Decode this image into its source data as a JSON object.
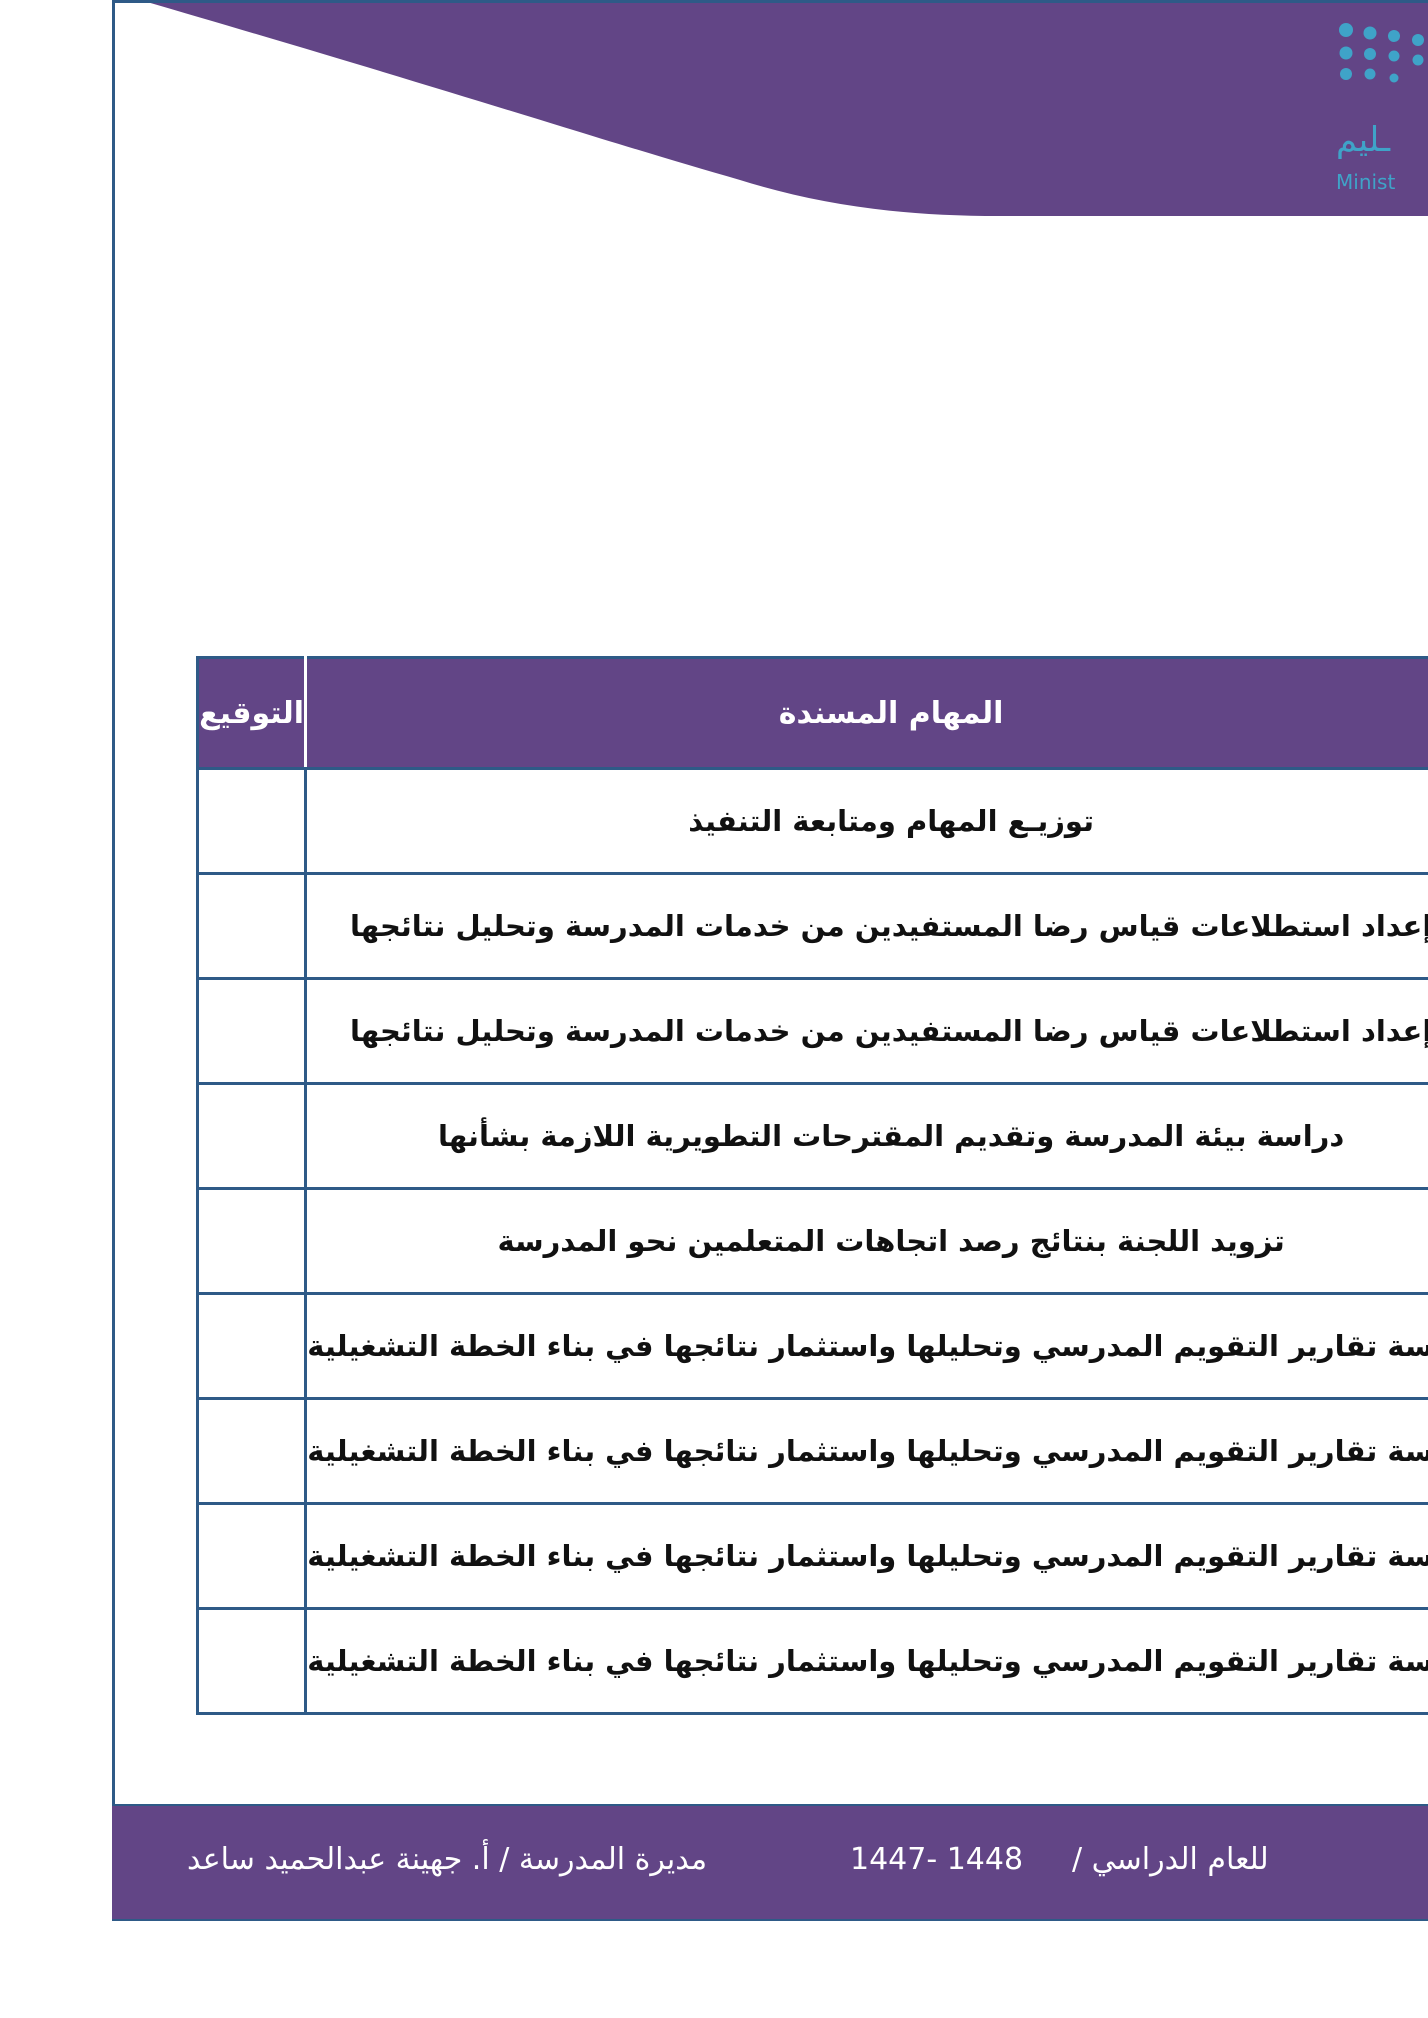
{
  "header": {
    "logo_text_ar": "ـليم",
    "logo_text_en": "Minist",
    "colors": {
      "brand": "#624586",
      "logo": "#3fa3c8",
      "border": "#2e5a87"
    }
  },
  "table": {
    "columns": {
      "signature": "التوقيع",
      "tasks": "المهام المسندة"
    },
    "rows": [
      "توزيـع المهام ومتابعة التنفيذ",
      "إعداد استطلاعات قياس رضا المستفيدين من خدمات المدرسة وتحليل نتائجها",
      "إعداد استطلاعات قياس رضا المستفيدين من خدمات المدرسة وتحليل نتائجها",
      "دراسة بيئة المدرسة وتقديم المقترحات التطويرية اللازمة بشأنها",
      "تزويد اللجنة بنتائج رصد اتجاهات المتعلمين نحو المدرسة",
      "دراسة تقارير التقويم المدرسي وتحليلها واستثمار نتائجها في بناء الخطة التشغيلية",
      "دراسة تقارير التقويم المدرسي وتحليلها واستثمار نتائجها في بناء الخطة التشغيلية",
      "دراسة تقارير التقويم المدرسي وتحليلها واستثمار نتائجها في بناء الخطة التشغيلية",
      "دراسة تقارير التقويم المدرسي وتحليلها واستثمار نتائجها في بناء الخطة التشغيلية"
    ]
  },
  "footer": {
    "year_label": "للعام الدراسي /",
    "year": "1447- 1448",
    "principal": "مديرة المدرسة / أ. جهينة عبدالحميد ساعد"
  }
}
